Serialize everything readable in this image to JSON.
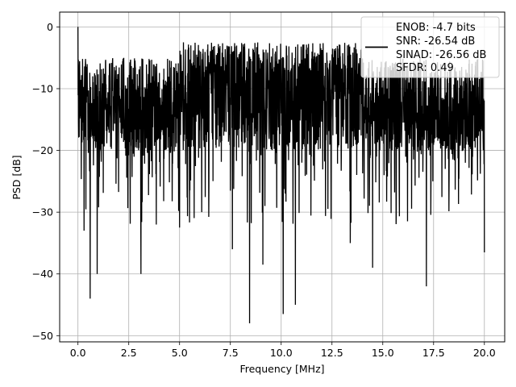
{
  "chart_data": {
    "type": "line",
    "title": "",
    "xlabel": "Frequency [MHz]",
    "ylabel": "PSD [dB]",
    "xlim": [
      -0.9,
      21.0
    ],
    "ylim": [
      -51.0,
      2.4
    ],
    "x_ticks": [
      0.0,
      2.5,
      5.0,
      7.5,
      10.0,
      12.5,
      15.0,
      17.5,
      20.0
    ],
    "x_tick_labels": [
      "0.0",
      "2.5",
      "5.0",
      "7.5",
      "10.0",
      "12.5",
      "15.0",
      "17.5",
      "20.0"
    ],
    "y_ticks": [
      0,
      -10,
      -20,
      -30,
      -40,
      -50
    ],
    "y_tick_labels": [
      "0",
      "−10",
      "−20",
      "−30",
      "−40",
      "−50"
    ],
    "grid": true,
    "legend_position": "top-right",
    "series": [
      {
        "color": "#000000",
        "x_range": [
          0.0,
          20.0
        ],
        "typical_envelope_db": [
          -24,
          -6
        ],
        "notable_points": [
          {
            "x": 0.0,
            "y": 0.0
          },
          {
            "x": 0.1,
            "y": -14.5
          },
          {
            "x": 0.3,
            "y": -33.0
          },
          {
            "x": 0.6,
            "y": -44.0
          },
          {
            "x": 0.95,
            "y": -40.0
          },
          {
            "x": 3.1,
            "y": -40.0
          },
          {
            "x": 5.0,
            "y": -32.5
          },
          {
            "x": 7.6,
            "y": -36.0
          },
          {
            "x": 8.45,
            "y": -48.0
          },
          {
            "x": 9.1,
            "y": -38.5
          },
          {
            "x": 10.1,
            "y": -46.5
          },
          {
            "x": 10.7,
            "y": -45.0
          },
          {
            "x": 13.4,
            "y": -35.0
          },
          {
            "x": 14.5,
            "y": -39.0
          },
          {
            "x": 17.15,
            "y": -42.0
          },
          {
            "x": 20.0,
            "y": -36.5
          }
        ]
      }
    ],
    "legend_lines": [
      "ENOB: -4.7 bits",
      "SNR: -26.54 dB",
      "SINAD: -26.56 dB",
      "SFDR: 0.49"
    ]
  }
}
